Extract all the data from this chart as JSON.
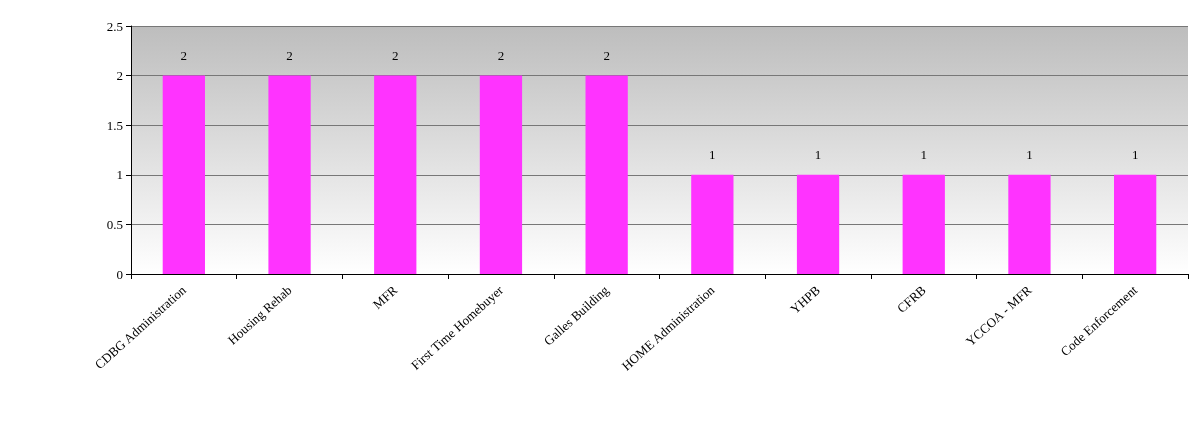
{
  "chart_data": {
    "type": "bar",
    "categories": [
      "CDBG Administration",
      "Housing Rehab",
      "MFR",
      "First Time Homebuyer",
      "Galles Building",
      "HOME Administration",
      "YHPB",
      "CFRB",
      "YCCOA - MFR",
      "Code Enforcement"
    ],
    "values": [
      2,
      2,
      2,
      2,
      2,
      1,
      1,
      1,
      1,
      1
    ],
    "color": "#ff33ff",
    "ylim": [
      0,
      2.5
    ],
    "yticks": [
      0,
      0.5,
      1,
      1.5,
      2,
      2.5
    ],
    "grid": "y",
    "data_labels": true
  }
}
